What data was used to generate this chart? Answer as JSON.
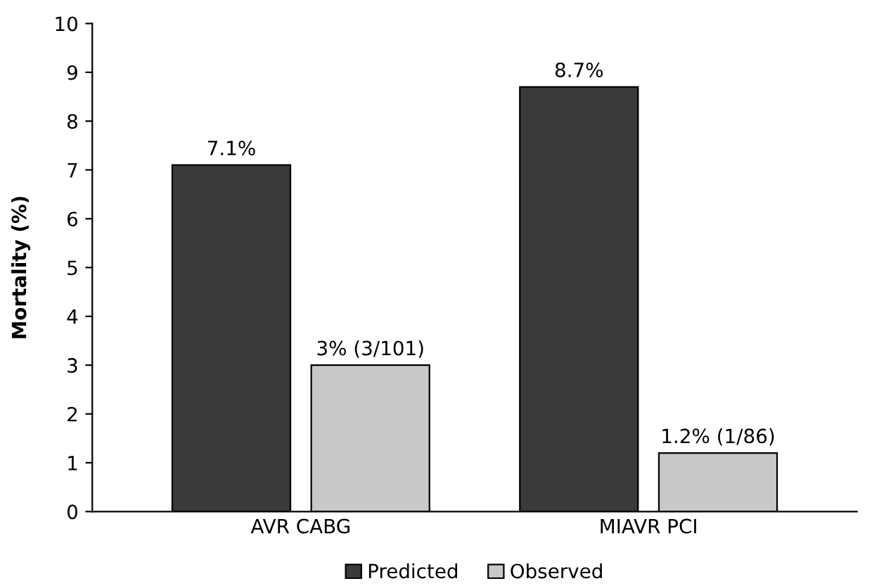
{
  "chart_data": {
    "type": "bar",
    "ylabel": "Mortality (%)",
    "categories": [
      "AVR CABG",
      "MIAVR PCI"
    ],
    "series": [
      {
        "name": "Predicted",
        "color": "#3a3a3a",
        "values": [
          7.1,
          8.7
        ],
        "value_labels": [
          "7.1%",
          "8.7%"
        ]
      },
      {
        "name": "Observed",
        "color": "#c8c8c8",
        "values": [
          3,
          1.2
        ],
        "value_labels": [
          "3% (3/101)",
          "1.2% (1/86)"
        ]
      }
    ],
    "ylim": [
      0,
      10
    ],
    "yticks": [
      0,
      1,
      2,
      3,
      4,
      5,
      6,
      7,
      8,
      9,
      10
    ],
    "grid": false,
    "legend": "bottom"
  }
}
